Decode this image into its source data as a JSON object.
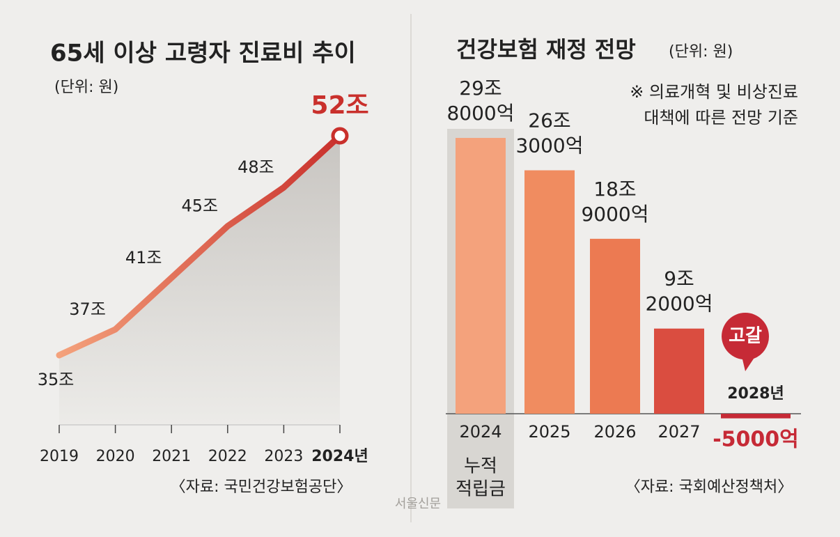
{
  "chart_data": [
    {
      "type": "line",
      "title": "65세 이상 고령자 진료비 추이",
      "subtitle": "(단위: 원)",
      "categories": [
        "2019",
        "2020",
        "2021",
        "2022",
        "2023",
        "2024년"
      ],
      "values": [
        35,
        37,
        41,
        45,
        48,
        52
      ],
      "value_labels": [
        "35조",
        "37조",
        "41조",
        "45조",
        "48조",
        "52조"
      ],
      "color": "#c9302c",
      "source": "〈자료: 국민건강보험공단〉"
    },
    {
      "type": "bar",
      "title": "건강보험 재정 전망",
      "subtitle": "(단위: 원)",
      "note": [
        "※ 의료개혁 및 비상진료",
        "대책에 따른 전망 기준"
      ],
      "categories": [
        "2024",
        "2025",
        "2026",
        "2027",
        "2028년"
      ],
      "values": [
        298000,
        263000,
        189000,
        92000,
        -5000
      ],
      "value_labels": [
        [
          "29조",
          "8000억"
        ],
        [
          "26조",
          "3000억"
        ],
        [
          "18조",
          "9000억"
        ],
        [
          "9조",
          "2000억"
        ],
        [
          "-5000억"
        ]
      ],
      "colors": [
        "#f4a27c",
        "#f08c60",
        "#ec7a52",
        "#da4d40",
        "#c62a36"
      ],
      "annotations": {
        "depletion": "고갈",
        "reserve": [
          "누적",
          "적립금"
        ]
      },
      "source": "〈자료: 국회예산정책처〉"
    }
  ],
  "credit": "서울신문"
}
